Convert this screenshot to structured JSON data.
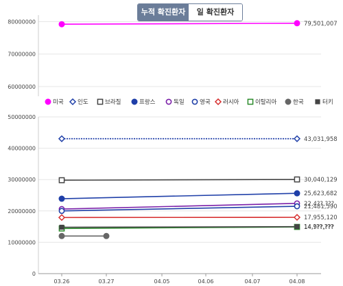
{
  "tabs": {
    "active_label": "누적 확진환자",
    "inactive_label": "일 확진환자"
  },
  "chart_data": {
    "type": "line",
    "x": [
      "03.26",
      "03.27",
      "04.05",
      "04.06",
      "04.07",
      "04.08"
    ],
    "top_panel": {
      "yticks": [
        "80000000",
        "70000000",
        "60000000"
      ],
      "ylim": [
        57000000,
        82000000
      ],
      "series": [
        {
          "name": "미국",
          "color": "#ff00ff",
          "marker": "circle-filled",
          "values": [
            79200000,
            null,
            null,
            null,
            null,
            79501007
          ],
          "end_label": "79,501,007"
        }
      ]
    },
    "bottom_panel": {
      "yticks": [
        "50000000",
        "40000000",
        "30000000",
        "20000000",
        "10000000",
        "0"
      ],
      "ylim": [
        0,
        50000000
      ],
      "series": [
        {
          "name": "인도",
          "color": "#1f3fa8",
          "marker": "diamond-open",
          "values": [
            43031958,
            null,
            null,
            null,
            null,
            43031958
          ],
          "end_label": "43,031,958"
        },
        {
          "name": "브라질",
          "color": "#444444",
          "marker": "square-open",
          "values": [
            29800000,
            null,
            null,
            null,
            null,
            30040129
          ],
          "end_label": "30,040,129"
        },
        {
          "name": "프랑스",
          "color": "#1f3fa8",
          "marker": "circle-filled",
          "values": [
            23900000,
            null,
            null,
            null,
            null,
            25623682
          ],
          "end_label": "25,623,682"
        },
        {
          "name": "독일",
          "color": "#7a1fa8",
          "marker": "circle-open",
          "values": [
            20600000,
            null,
            null,
            null,
            null,
            22400000
          ],
          "end_label": "22,4??,???"
        },
        {
          "name": "영국",
          "color": "#1f3fa8",
          "marker": "circle-open",
          "values": [
            20000000,
            null,
            null,
            null,
            null,
            21481590
          ],
          "end_label": "21,481,590"
        },
        {
          "name": "러시아",
          "color": "#d62c2c",
          "marker": "diamond-open",
          "values": [
            17900000,
            null,
            null,
            null,
            null,
            17955120
          ],
          "end_label": "17,955,120"
        },
        {
          "name": "이탈리아",
          "color": "#2a8a2a",
          "marker": "square-open",
          "values": [
            14400000,
            null,
            null,
            null,
            null,
            14900000
          ],
          "end_label": "14,9??,???"
        },
        {
          "name": "한국",
          "color": "#666666",
          "marker": "circle-filled",
          "values": [
            12000000,
            12000000,
            null,
            null,
            null,
            null
          ],
          "end_label": ""
        },
        {
          "name": "터키",
          "color": "#444444",
          "marker": "square-filled",
          "values": [
            14800000,
            null,
            null,
            null,
            null,
            14980000
          ],
          "end_label": "14,???,???"
        }
      ]
    },
    "legend_placement": "between panels"
  }
}
